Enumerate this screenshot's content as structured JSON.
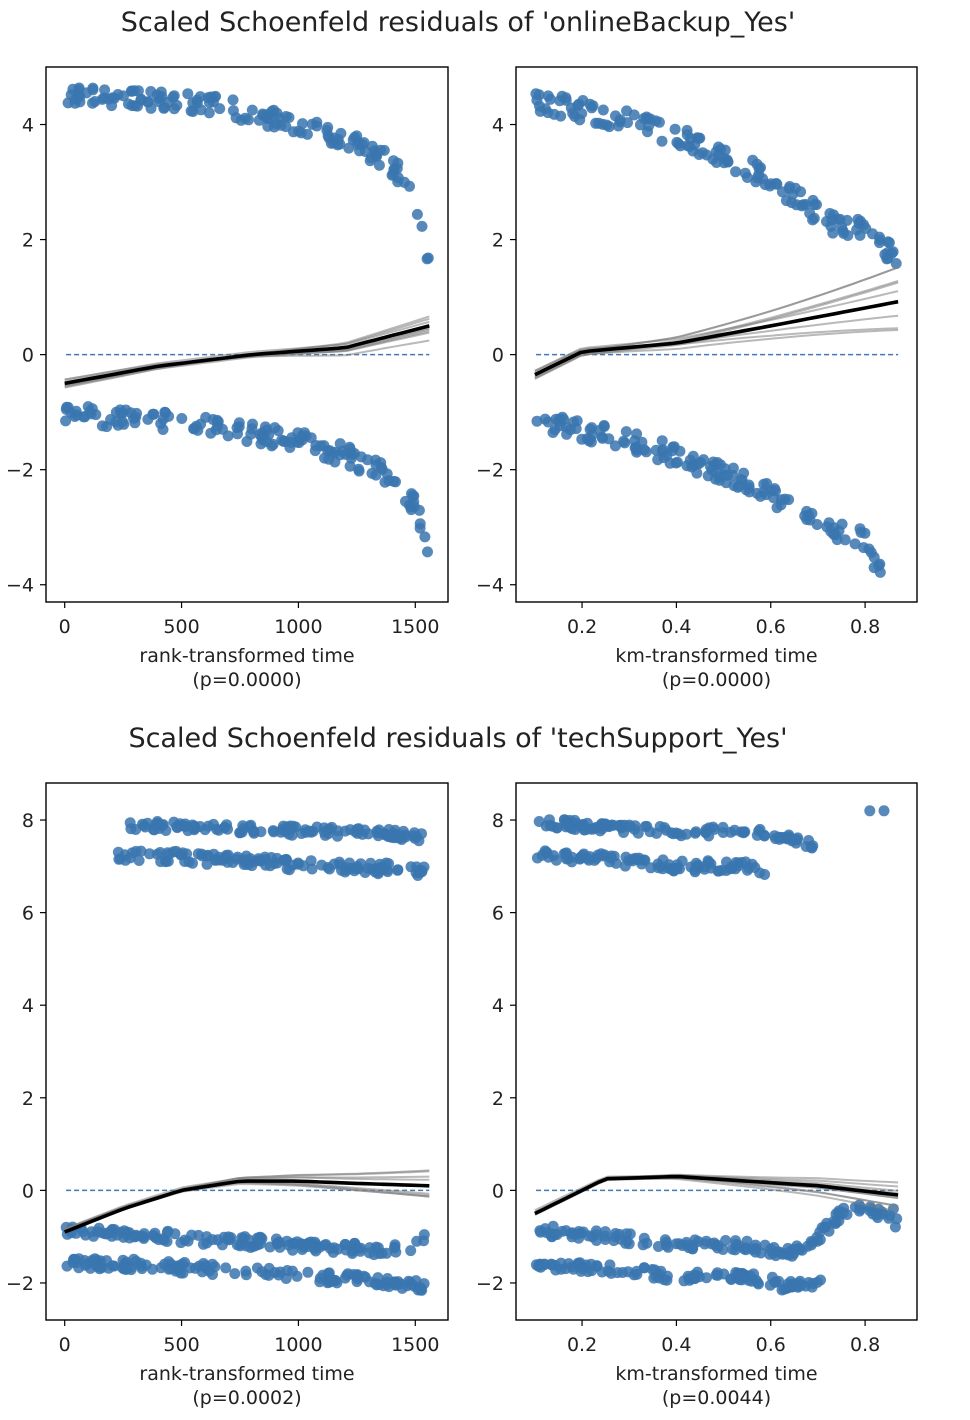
{
  "figure": {
    "titles": [
      "Scaled Schoenfeld residuals of 'onlineBackup_Yes'",
      "Scaled Schoenfeld residuals of 'techSupport_Yes'"
    ]
  },
  "colors": {
    "points": "#3a75af",
    "reference_line": "#3f79b3",
    "trend": "#000000",
    "bootstrap": "#808080"
  },
  "chart_data": [
    {
      "type": "scatter",
      "title": "Scaled Schoenfeld residuals of 'onlineBackup_Yes'",
      "xlabel": "rank-transformed time",
      "pvalue_label": "(p=0.0000)",
      "xlim": [
        -80,
        1640
      ],
      "ylim": [
        -4.3,
        5.0
      ],
      "xticks": [
        0,
        500,
        1000,
        1500
      ],
      "xtick_labels": [
        "0",
        "500",
        "1000",
        "1500"
      ],
      "yticks": [
        -4,
        -2,
        0,
        2,
        4
      ],
      "ytick_labels": [
        "−4",
        "−2",
        "0",
        "2",
        "4"
      ],
      "reference_line_y": 0,
      "residual_clusters": [
        {
          "x": [
            0,
            200,
            400,
            600,
            800,
            1000,
            1200,
            1400,
            1500,
            1540,
            1560
          ],
          "y_center": [
            4.55,
            4.5,
            4.45,
            4.35,
            4.2,
            4.0,
            3.75,
            3.3,
            2.7,
            2.0,
            1.4
          ],
          "spread": 0.18
        },
        {
          "x": [
            0,
            200,
            400,
            600,
            800,
            1000,
            1200,
            1400,
            1500,
            1540,
            1560
          ],
          "y_center": [
            -1.05,
            -1.08,
            -1.15,
            -1.22,
            -1.35,
            -1.5,
            -1.75,
            -2.15,
            -2.6,
            -3.1,
            -3.9
          ],
          "spread": 0.18
        }
      ],
      "trend_line": {
        "x": [
          0,
          400,
          800,
          1200,
          1560
        ],
        "y": [
          -0.5,
          -0.2,
          0.0,
          0.12,
          0.5
        ]
      },
      "bootstrap_spread": 0.35
    },
    {
      "type": "scatter",
      "title": "Scaled Schoenfeld residuals of 'onlineBackup_Yes'",
      "xlabel": "km-transformed time",
      "pvalue_label": "(p=0.0000)",
      "xlim": [
        0.06,
        0.91
      ],
      "ylim": [
        -4.3,
        5.0
      ],
      "xticks": [
        0.2,
        0.4,
        0.6,
        0.8
      ],
      "xtick_labels": [
        "0.2",
        "0.4",
        "0.6",
        "0.8"
      ],
      "yticks": [
        -4,
        -2,
        0,
        2,
        4
      ],
      "ytick_labels": [
        "−4",
        "−2",
        "0",
        "2",
        "4"
      ],
      "reference_line_y": 0,
      "residual_clusters": [
        {
          "x": [
            0.1,
            0.2,
            0.3,
            0.4,
            0.5,
            0.6,
            0.7,
            0.75,
            0.8,
            0.85,
            0.87
          ],
          "y_center": [
            4.4,
            4.25,
            4.05,
            3.8,
            3.45,
            3.05,
            2.45,
            2.2,
            2.2,
            1.8,
            1.4
          ],
          "spread": 0.18
        },
        {
          "x": [
            0.1,
            0.2,
            0.3,
            0.4,
            0.5,
            0.6,
            0.7,
            0.75,
            0.8,
            0.84
          ],
          "y_center": [
            -1.1,
            -1.3,
            -1.5,
            -1.75,
            -2.05,
            -2.45,
            -2.85,
            -3.1,
            -3.2,
            -3.9
          ],
          "spread": 0.18
        }
      ],
      "trend_line": {
        "x": [
          0.1,
          0.2,
          0.4,
          0.6,
          0.87
        ],
        "y": [
          -0.35,
          0.05,
          0.2,
          0.5,
          0.92
        ]
      },
      "bootstrap_spread": 0.7
    },
    {
      "type": "scatter",
      "title": "Scaled Schoenfeld residuals of 'techSupport_Yes'",
      "xlabel": "rank-transformed time",
      "pvalue_label": "(p=0.0002)",
      "xlim": [
        -80,
        1640
      ],
      "ylim": [
        -2.8,
        8.8
      ],
      "xticks": [
        0,
        500,
        1000,
        1500
      ],
      "xtick_labels": [
        "0",
        "500",
        "1000",
        "1500"
      ],
      "yticks": [
        -2,
        0,
        2,
        4,
        6,
        8
      ],
      "ytick_labels": [
        "−2",
        "0",
        "2",
        "4",
        "6",
        "8"
      ],
      "reference_line_y": 0,
      "residual_clusters": [
        {
          "x": [
            250,
            500,
            800,
            1100,
            1400,
            1550
          ],
          "y_center": [
            7.9,
            7.85,
            7.8,
            7.75,
            7.7,
            7.6
          ],
          "spread": 0.1
        },
        {
          "x": [
            200,
            500,
            800,
            1100,
            1400,
            1550
          ],
          "y_center": [
            7.25,
            7.2,
            7.1,
            7.0,
            6.95,
            6.9
          ],
          "spread": 0.12
        },
        {
          "x": [
            0,
            300,
            600,
            900,
            1200,
            1450,
            1540
          ],
          "y_center": [
            -0.85,
            -0.95,
            -1.05,
            -1.15,
            -1.25,
            -1.3,
            -1.0
          ],
          "spread": 0.12
        },
        {
          "x": [
            0,
            300,
            600,
            900,
            1200,
            1450,
            1540
          ],
          "y_center": [
            -1.55,
            -1.6,
            -1.7,
            -1.8,
            -1.9,
            -2.0,
            -2.1
          ],
          "spread": 0.12
        }
      ],
      "trend_line": {
        "x": [
          0,
          250,
          500,
          750,
          1000,
          1250,
          1560
        ],
        "y": [
          -0.9,
          -0.4,
          0.0,
          0.2,
          0.2,
          0.15,
          0.1
        ]
      },
      "bootstrap_spread": 0.4
    },
    {
      "type": "scatter",
      "title": "Scaled Schoenfeld residuals of 'techSupport_Yes'",
      "xlabel": "km-transformed time",
      "pvalue_label": "(p=0.0044)",
      "xlim": [
        0.06,
        0.91
      ],
      "ylim": [
        -2.8,
        8.8
      ],
      "xticks": [
        0.2,
        0.4,
        0.6,
        0.8
      ],
      "xtick_labels": [
        "0.2",
        "0.4",
        "0.6",
        "0.8"
      ],
      "yticks": [
        -2,
        0,
        2,
        4,
        6,
        8
      ],
      "ytick_labels": [
        "−2",
        "0",
        "2",
        "4",
        "6",
        "8"
      ],
      "reference_line_y": 0,
      "residual_clusters": [
        {
          "x": [
            0.1,
            0.25,
            0.4,
            0.55,
            0.65,
            0.7
          ],
          "y_center": [
            7.95,
            7.85,
            7.75,
            7.75,
            7.6,
            7.45
          ],
          "spread": 0.1
        },
        {
          "x": [
            0.1,
            0.25,
            0.4,
            0.55,
            0.6
          ],
          "y_center": [
            7.25,
            7.15,
            7.0,
            7.0,
            6.85
          ],
          "spread": 0.12
        },
        {
          "x": [
            0.1,
            0.25,
            0.4,
            0.55,
            0.65,
            0.7,
            0.75,
            0.8,
            0.87
          ],
          "y_center": [
            -0.85,
            -1.0,
            -1.15,
            -1.2,
            -1.35,
            -1.0,
            -0.5,
            -0.4,
            -0.7
          ],
          "spread": 0.12
        },
        {
          "x": [
            0.1,
            0.25,
            0.4,
            0.55,
            0.65,
            0.72
          ],
          "y_center": [
            -1.6,
            -1.7,
            -1.85,
            -1.85,
            -2.1,
            -2.0
          ],
          "spread": 0.12
        }
      ],
      "extra_points": [
        {
          "x": 0.81,
          "y": 8.2
        },
        {
          "x": 0.84,
          "y": 8.2
        },
        {
          "x": 0.86,
          "y": -0.4
        }
      ],
      "trend_line": {
        "x": [
          0.1,
          0.25,
          0.4,
          0.55,
          0.7,
          0.87
        ],
        "y": [
          -0.5,
          0.25,
          0.3,
          0.2,
          0.1,
          -0.1
        ]
      },
      "bootstrap_spread": 0.4
    }
  ]
}
